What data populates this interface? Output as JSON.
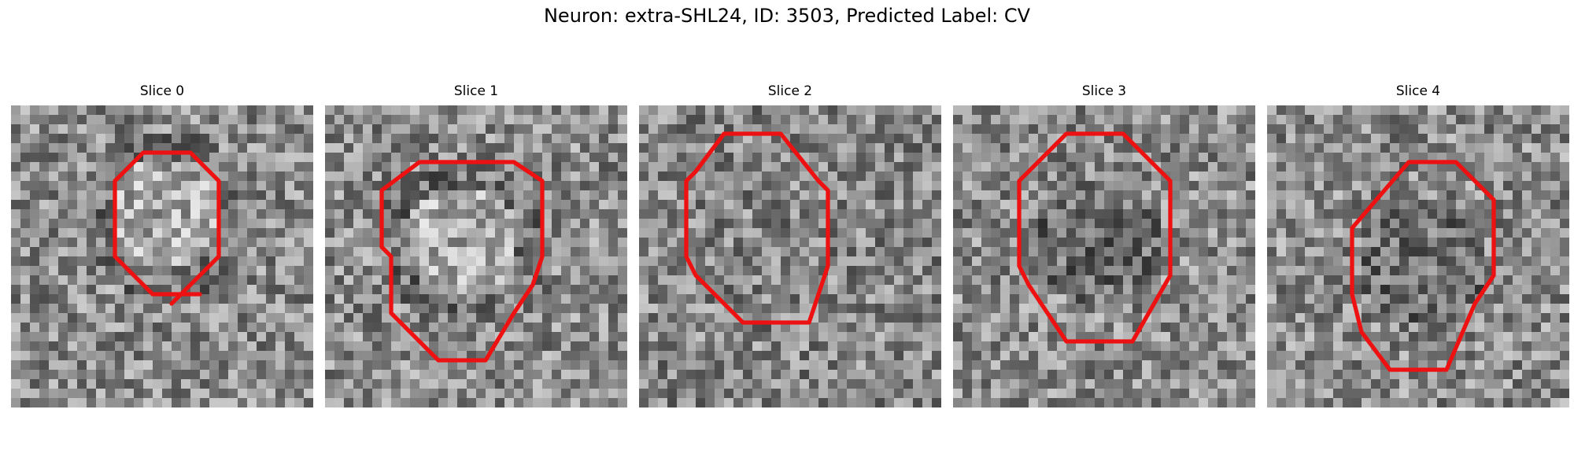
{
  "figure": {
    "title": "Neuron: extra-SHL24, ID: 3503, Predicted Label: CV"
  },
  "panels": [
    {
      "label": "Slice 0",
      "outline": [
        [
          10,
          10
        ],
        [
          7.5,
          10
        ],
        [
          5.5,
          8
        ],
        [
          5.5,
          4
        ],
        [
          7,
          2.5
        ],
        [
          9.5,
          2.5
        ],
        [
          11,
          4
        ],
        [
          11,
          8
        ],
        [
          8.5,
          10.5
        ]
      ],
      "bright_center": [
        8,
        5.5
      ]
    },
    {
      "label": "Slice 1",
      "outline": [
        [
          8.5,
          13.5
        ],
        [
          6,
          13.5
        ],
        [
          3.5,
          11
        ],
        [
          3.5,
          8
        ],
        [
          3,
          7.5
        ],
        [
          3,
          4.5
        ],
        [
          5,
          3
        ],
        [
          10,
          3
        ],
        [
          11.5,
          4
        ],
        [
          11.5,
          8
        ],
        [
          11,
          9.5
        ],
        [
          10,
          11
        ],
        [
          8.5,
          13.5
        ]
      ],
      "bright_center": [
        7,
        7
      ]
    },
    {
      "label": "Slice 2",
      "outline": [
        [
          9,
          11.5
        ],
        [
          5.5,
          11.5
        ],
        [
          3,
          9
        ],
        [
          2.5,
          8
        ],
        [
          2.5,
          4
        ],
        [
          3,
          3.5
        ],
        [
          4.5,
          1.5
        ],
        [
          7.5,
          1.5
        ],
        [
          9.5,
          4
        ],
        [
          10,
          4.5
        ],
        [
          10,
          8.5
        ],
        [
          9,
          11.5
        ]
      ],
      "bright_center": [
        6.5,
        6.5
      ]
    },
    {
      "label": "Slice 3",
      "outline": [
        [
          9.5,
          12.5
        ],
        [
          6,
          12.5
        ],
        [
          4,
          9.5
        ],
        [
          3.5,
          8.5
        ],
        [
          3.5,
          4
        ],
        [
          6,
          1.5
        ],
        [
          9,
          1.5
        ],
        [
          10,
          2.5
        ],
        [
          11.5,
          4
        ],
        [
          11.5,
          9
        ],
        [
          9.5,
          12.5
        ]
      ],
      "bright_center": [
        7.5,
        7
      ]
    },
    {
      "label": "Slice 4",
      "outline": [
        [
          9.5,
          14
        ],
        [
          6.5,
          14
        ],
        [
          5,
          12
        ],
        [
          4.5,
          10
        ],
        [
          4.5,
          6.5
        ],
        [
          7.5,
          3
        ],
        [
          10,
          3
        ],
        [
          12,
          5
        ],
        [
          12,
          9
        ],
        [
          11,
          10.5
        ],
        [
          9.5,
          14
        ]
      ],
      "bright_center": [
        8,
        8
      ]
    }
  ],
  "colors": {
    "outline": "#ee1111",
    "background": "#ffffff"
  }
}
